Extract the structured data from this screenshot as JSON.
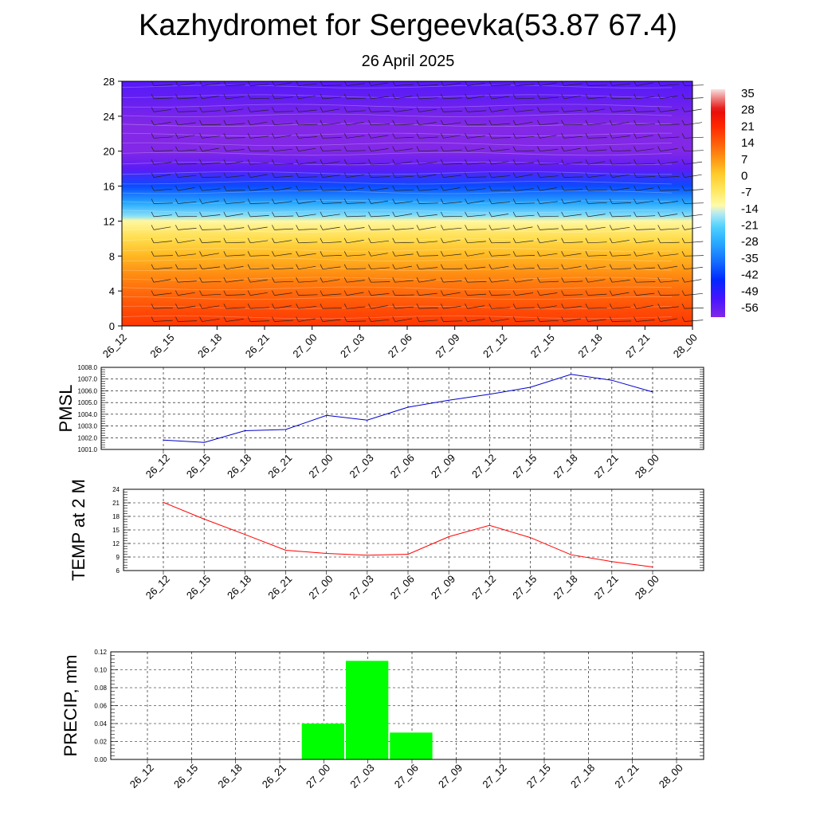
{
  "header": {
    "title": "Kazhydromet for Sergeevka(53.87 67.4)",
    "subtitle": "26 April 2025"
  },
  "chart_data": [
    {
      "type": "heatmap",
      "name": "upper-air-section",
      "x_ticks": [
        "26_12",
        "26_15",
        "26_18",
        "26_21",
        "27_00",
        "27_03",
        "27_06",
        "27_09",
        "27_12",
        "27_15",
        "27_18",
        "27_21",
        "28_00"
      ],
      "y_ticks": [
        0,
        4,
        8,
        12,
        16,
        20,
        24,
        28
      ],
      "ylim": [
        0,
        28
      ],
      "colorbar_labels": [
        "35",
        "28",
        "21",
        "14",
        "7",
        "0",
        "-7",
        "-14",
        "-21",
        "-28",
        "-35",
        "-42",
        "-49",
        "-56"
      ],
      "colorbar_range": [
        -60,
        38
      ],
      "temperature_profile_by_height": [
        {
          "y": 0,
          "t": 20
        },
        {
          "y": 2,
          "t": 17
        },
        {
          "y": 4,
          "t": 13
        },
        {
          "y": 6,
          "t": 9
        },
        {
          "y": 8,
          "t": 4
        },
        {
          "y": 10,
          "t": -3
        },
        {
          "y": 12,
          "t": -11
        },
        {
          "y": 12.6,
          "t": -18
        },
        {
          "y": 14,
          "t": -28
        },
        {
          "y": 16,
          "t": -40
        },
        {
          "y": 18,
          "t": -55
        },
        {
          "y": 20,
          "t": -62
        },
        {
          "y": 23,
          "t": -60
        },
        {
          "y": 26,
          "t": -56
        },
        {
          "y": 28,
          "t": -54
        }
      ],
      "colors": {
        "warm": "#ff2400",
        "neutral": "#fff8b0",
        "cold": "#1a1aff",
        "coldest": "#8a2be2"
      }
    },
    {
      "type": "line",
      "name": "pmsl",
      "ylabel": "PMSL",
      "categories": [
        "26_12",
        "26_15",
        "26_18",
        "26_21",
        "27_00",
        "27_03",
        "27_06",
        "27_09",
        "27_12",
        "27_15",
        "27_18",
        "27_21",
        "28_00"
      ],
      "series": [
        {
          "values": [
            1001.8,
            1001.6,
            1002.6,
            1002.7,
            1003.9,
            1003.5,
            1004.6,
            1005.2,
            1005.7,
            1006.3,
            1007.4,
            1006.9,
            1005.9
          ]
        }
      ],
      "y_ticks": [
        "1001.0",
        "1002.0",
        "1003.0",
        "1004.0",
        "1005.0",
        "1006.0",
        "1007.0",
        "1008.0"
      ],
      "ylim": [
        1001,
        1008
      ],
      "color": "#0000cc"
    },
    {
      "type": "line",
      "name": "temp2m",
      "ylabel": "TEMP at 2 M",
      "categories": [
        "26_12",
        "26_15",
        "26_18",
        "26_21",
        "27_00",
        "27_03",
        "27_06",
        "27_09",
        "27_12",
        "27_15",
        "27_18",
        "27_21",
        "28_00"
      ],
      "series": [
        {
          "values": [
            21.1,
            17.4,
            14.0,
            10.5,
            9.8,
            9.4,
            9.6,
            13.5,
            16.0,
            13.3,
            9.5,
            8.0,
            6.8
          ]
        }
      ],
      "y_ticks": [
        "6",
        "9",
        "12",
        "15",
        "18",
        "21",
        "24"
      ],
      "ylim": [
        6,
        24
      ],
      "color": "#ff0000"
    },
    {
      "type": "bar",
      "name": "precip",
      "ylabel": "PRECIP, mm",
      "categories": [
        "26_12",
        "26_15",
        "26_18",
        "26_21",
        "27_00",
        "27_03",
        "27_06",
        "27_09",
        "27_12",
        "27_15",
        "27_18",
        "27_21",
        "28_00"
      ],
      "values": [
        0,
        0,
        0,
        0,
        0.04,
        0.11,
        0.03,
        0,
        0,
        0,
        0,
        0,
        0
      ],
      "y_ticks": [
        "0.00",
        "0.02",
        "0.04",
        "0.06",
        "0.08",
        "0.10",
        "0.12"
      ],
      "ylim": [
        0,
        0.12
      ],
      "color": "#00ff00"
    }
  ]
}
